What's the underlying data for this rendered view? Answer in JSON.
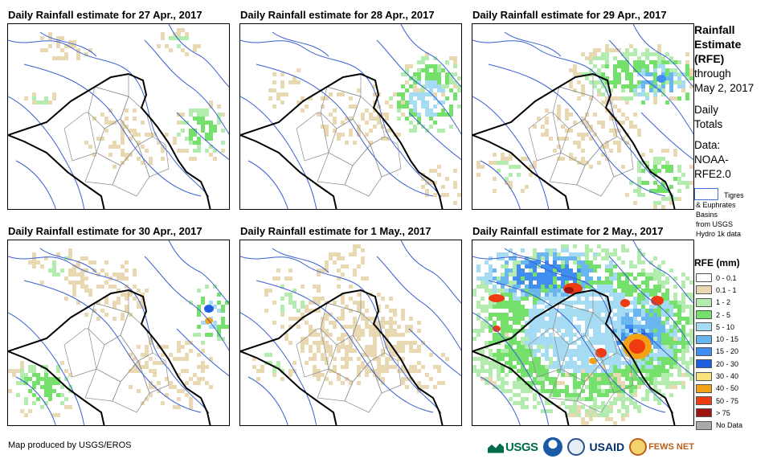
{
  "panels": [
    {
      "title": "Daily Rainfall estimate for 27 Apr., 2017"
    },
    {
      "title": "Daily Rainfall estimate for 28 Apr., 2017"
    },
    {
      "title": "Daily Rainfall estimate for 29 Apr., 2017"
    },
    {
      "title": "Daily Rainfall estimate for 30 Apr., 2017"
    },
    {
      "title": "Daily Rainfall estimate for 1 May., 2017"
    },
    {
      "title": "Daily Rainfall estimate for 2 May., 2017"
    }
  ],
  "sidebar": {
    "title_line1": "Rainfall",
    "title_line2": "Estimate",
    "title_line3": "(RFE)",
    "through_line1": "through",
    "through_line2": "May 2, 2017",
    "daily_line1": "Daily",
    "daily_line2": "Totals",
    "data_line1": "Data:",
    "data_line2": "NOAA-",
    "data_line3": "RFE2.0",
    "basin_line1": "Tigres",
    "basin_line2": "& Euphrates",
    "basin_line3": "Basins",
    "basin_line4": "from USGS",
    "basin_line5": "Hydro 1k data"
  },
  "legend": {
    "title": "RFE (mm)",
    "items": [
      {
        "label": "0 - 0.1",
        "color": "#ffffff"
      },
      {
        "label": "0.1 - 1",
        "color": "#e9d9b3"
      },
      {
        "label": "1 - 2",
        "color": "#b4ecb0"
      },
      {
        "label": "2 - 5",
        "color": "#76e06d"
      },
      {
        "label": "5 - 10",
        "color": "#a5dcf3"
      },
      {
        "label": "10 - 15",
        "color": "#6ab6ee"
      },
      {
        "label": "15 - 20",
        "color": "#3f8ef0"
      },
      {
        "label": "20 - 30",
        "color": "#1f5ee0"
      },
      {
        "label": "30 - 40",
        "color": "#f9e27c"
      },
      {
        "label": "40 - 50",
        "color": "#f5a116"
      },
      {
        "label": "50 - 75",
        "color": "#ee3b12"
      },
      {
        "label": "> 75",
        "color": "#9e1410"
      },
      {
        "label": "No Data",
        "color": "#a9a9a9"
      }
    ]
  },
  "footer": {
    "credit": "Map produced by USGS/EROS",
    "logo_usgs": "USGS",
    "logo_usaid": "USAID",
    "logo_fews": "FEWS NET"
  },
  "colors": {
    "river": "#3a5fd0",
    "border": "#000000",
    "district": "#8a8a8a"
  }
}
